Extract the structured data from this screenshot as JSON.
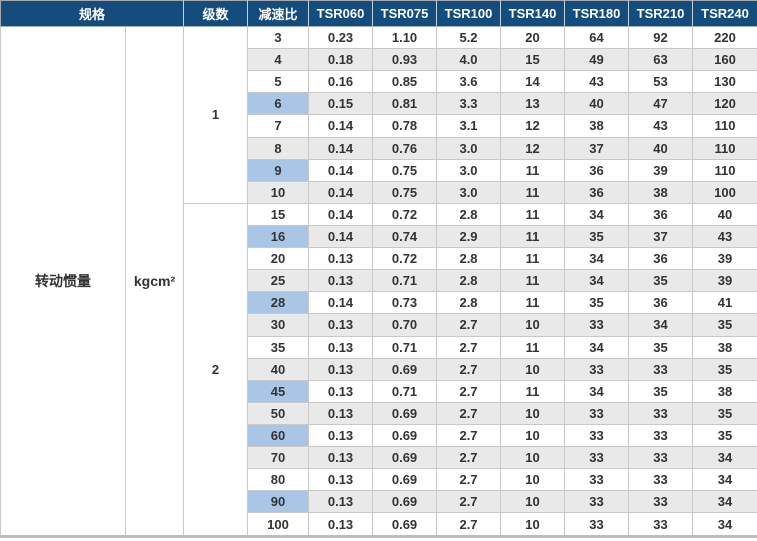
{
  "colors": {
    "header_bg": "#154C7E",
    "header_text": "#FFFFFF",
    "row_alt_bg": "#E9E9E9",
    "highlight_cell_bg": "#A9C6E7",
    "cell_border": "#C8C8C8",
    "text": "#333333"
  },
  "table": {
    "header": {
      "spec": "规格",
      "stages": "级数",
      "ratio": "减速比",
      "models": [
        "TSR060",
        "TSR075",
        "TSR100",
        "TSR140",
        "TSR180",
        "TSR210",
        "TSR240"
      ]
    },
    "spec_label": "转动惯量",
    "unit_label": "kgcm²",
    "stages": [
      {
        "stage": "1",
        "rows": [
          {
            "ratio": "3",
            "highlight": false,
            "values": [
              "0.23",
              "1.10",
              "5.2",
              "20",
              "64",
              "92",
              "220"
            ]
          },
          {
            "ratio": "4",
            "highlight": false,
            "values": [
              "0.18",
              "0.93",
              "4.0",
              "15",
              "49",
              "63",
              "160"
            ]
          },
          {
            "ratio": "5",
            "highlight": false,
            "values": [
              "0.16",
              "0.85",
              "3.6",
              "14",
              "43",
              "53",
              "130"
            ]
          },
          {
            "ratio": "6",
            "highlight": true,
            "values": [
              "0.15",
              "0.81",
              "3.3",
              "13",
              "40",
              "47",
              "120"
            ]
          },
          {
            "ratio": "7",
            "highlight": false,
            "values": [
              "0.14",
              "0.78",
              "3.1",
              "12",
              "38",
              "43",
              "110"
            ]
          },
          {
            "ratio": "8",
            "highlight": false,
            "values": [
              "0.14",
              "0.76",
              "3.0",
              "12",
              "37",
              "40",
              "110"
            ]
          },
          {
            "ratio": "9",
            "highlight": true,
            "values": [
              "0.14",
              "0.75",
              "3.0",
              "11",
              "36",
              "39",
              "110"
            ]
          },
          {
            "ratio": "10",
            "highlight": false,
            "values": [
              "0.14",
              "0.75",
              "3.0",
              "11",
              "36",
              "38",
              "100"
            ]
          }
        ]
      },
      {
        "stage": "2",
        "rows": [
          {
            "ratio": "15",
            "highlight": false,
            "values": [
              "0.14",
              "0.72",
              "2.8",
              "11",
              "34",
              "36",
              "40"
            ]
          },
          {
            "ratio": "16",
            "highlight": true,
            "values": [
              "0.14",
              "0.74",
              "2.9",
              "11",
              "35",
              "37",
              "43"
            ]
          },
          {
            "ratio": "20",
            "highlight": false,
            "values": [
              "0.13",
              "0.72",
              "2.8",
              "11",
              "34",
              "36",
              "39"
            ]
          },
          {
            "ratio": "25",
            "highlight": false,
            "values": [
              "0.13",
              "0.71",
              "2.8",
              "11",
              "34",
              "35",
              "39"
            ]
          },
          {
            "ratio": "28",
            "highlight": true,
            "values": [
              "0.14",
              "0.73",
              "2.8",
              "11",
              "35",
              "36",
              "41"
            ]
          },
          {
            "ratio": "30",
            "highlight": false,
            "values": [
              "0.13",
              "0.70",
              "2.7",
              "10",
              "33",
              "34",
              "35"
            ]
          },
          {
            "ratio": "35",
            "highlight": false,
            "values": [
              "0.13",
              "0.71",
              "2.7",
              "11",
              "34",
              "35",
              "38"
            ]
          },
          {
            "ratio": "40",
            "highlight": false,
            "values": [
              "0.13",
              "0.69",
              "2.7",
              "10",
              "33",
              "33",
              "35"
            ]
          },
          {
            "ratio": "45",
            "highlight": true,
            "values": [
              "0.13",
              "0.71",
              "2.7",
              "11",
              "34",
              "35",
              "38"
            ]
          },
          {
            "ratio": "50",
            "highlight": false,
            "values": [
              "0.13",
              "0.69",
              "2.7",
              "10",
              "33",
              "33",
              "35"
            ]
          },
          {
            "ratio": "60",
            "highlight": true,
            "values": [
              "0.13",
              "0.69",
              "2.7",
              "10",
              "33",
              "33",
              "35"
            ]
          },
          {
            "ratio": "70",
            "highlight": false,
            "values": [
              "0.13",
              "0.69",
              "2.7",
              "10",
              "33",
              "33",
              "34"
            ]
          },
          {
            "ratio": "80",
            "highlight": false,
            "values": [
              "0.13",
              "0.69",
              "2.7",
              "10",
              "33",
              "33",
              "34"
            ]
          },
          {
            "ratio": "90",
            "highlight": true,
            "values": [
              "0.13",
              "0.69",
              "2.7",
              "10",
              "33",
              "33",
              "34"
            ]
          },
          {
            "ratio": "100",
            "highlight": false,
            "values": [
              "0.13",
              "0.69",
              "2.7",
              "10",
              "33",
              "33",
              "34"
            ]
          }
        ]
      }
    ]
  }
}
